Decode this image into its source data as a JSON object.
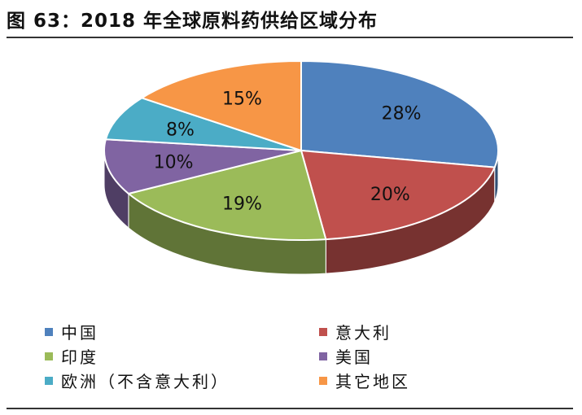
{
  "figure": {
    "title": "图 63：2018 年全球原料药供给区域分布"
  },
  "chart_data": {
    "type": "pie",
    "style": "3d",
    "title": "图 63：2018 年全球原料药供给区域分布",
    "legend_placement": "bottom",
    "slices": [
      {
        "name": "中国",
        "value": 28,
        "label": "28%",
        "color": "#4F81BD"
      },
      {
        "name": "意大利",
        "value": 20,
        "label": "20%",
        "color": "#C0504D"
      },
      {
        "name": "印度",
        "value": 19,
        "label": "19%",
        "color": "#9BBB59"
      },
      {
        "name": "美国",
        "value": 10,
        "label": "10%",
        "color": "#8064A2"
      },
      {
        "name": "欧洲（不含意大利）",
        "value": 8,
        "label": "8%",
        "color": "#4BACC6"
      },
      {
        "name": "其它地区",
        "value": 15,
        "label": "15%",
        "color": "#F79646"
      }
    ]
  }
}
